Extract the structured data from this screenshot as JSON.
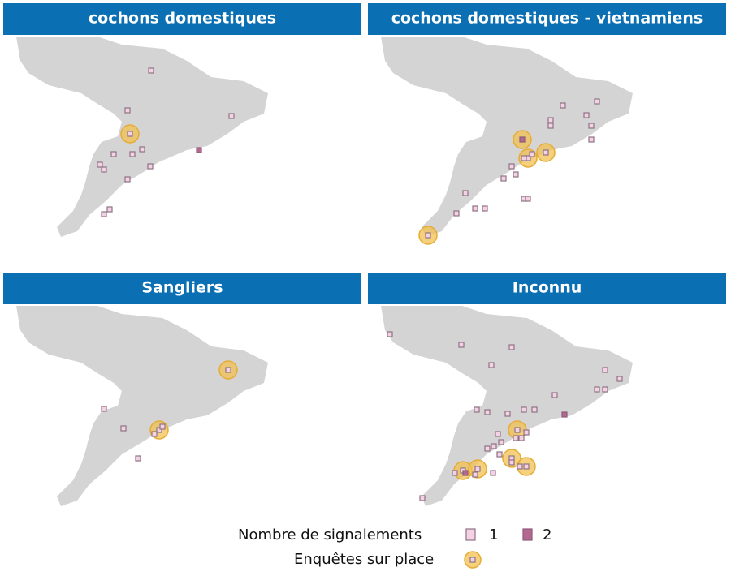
{
  "panels": [
    "cochons domestiques",
    "cochons domestiques - vietnamiens",
    "Sangliers",
    "Inconnu"
  ],
  "legend": {
    "count_title": "Nombre de signalements",
    "levels": [
      1,
      2
    ],
    "survey": "Enquêtes sur place"
  }
}
